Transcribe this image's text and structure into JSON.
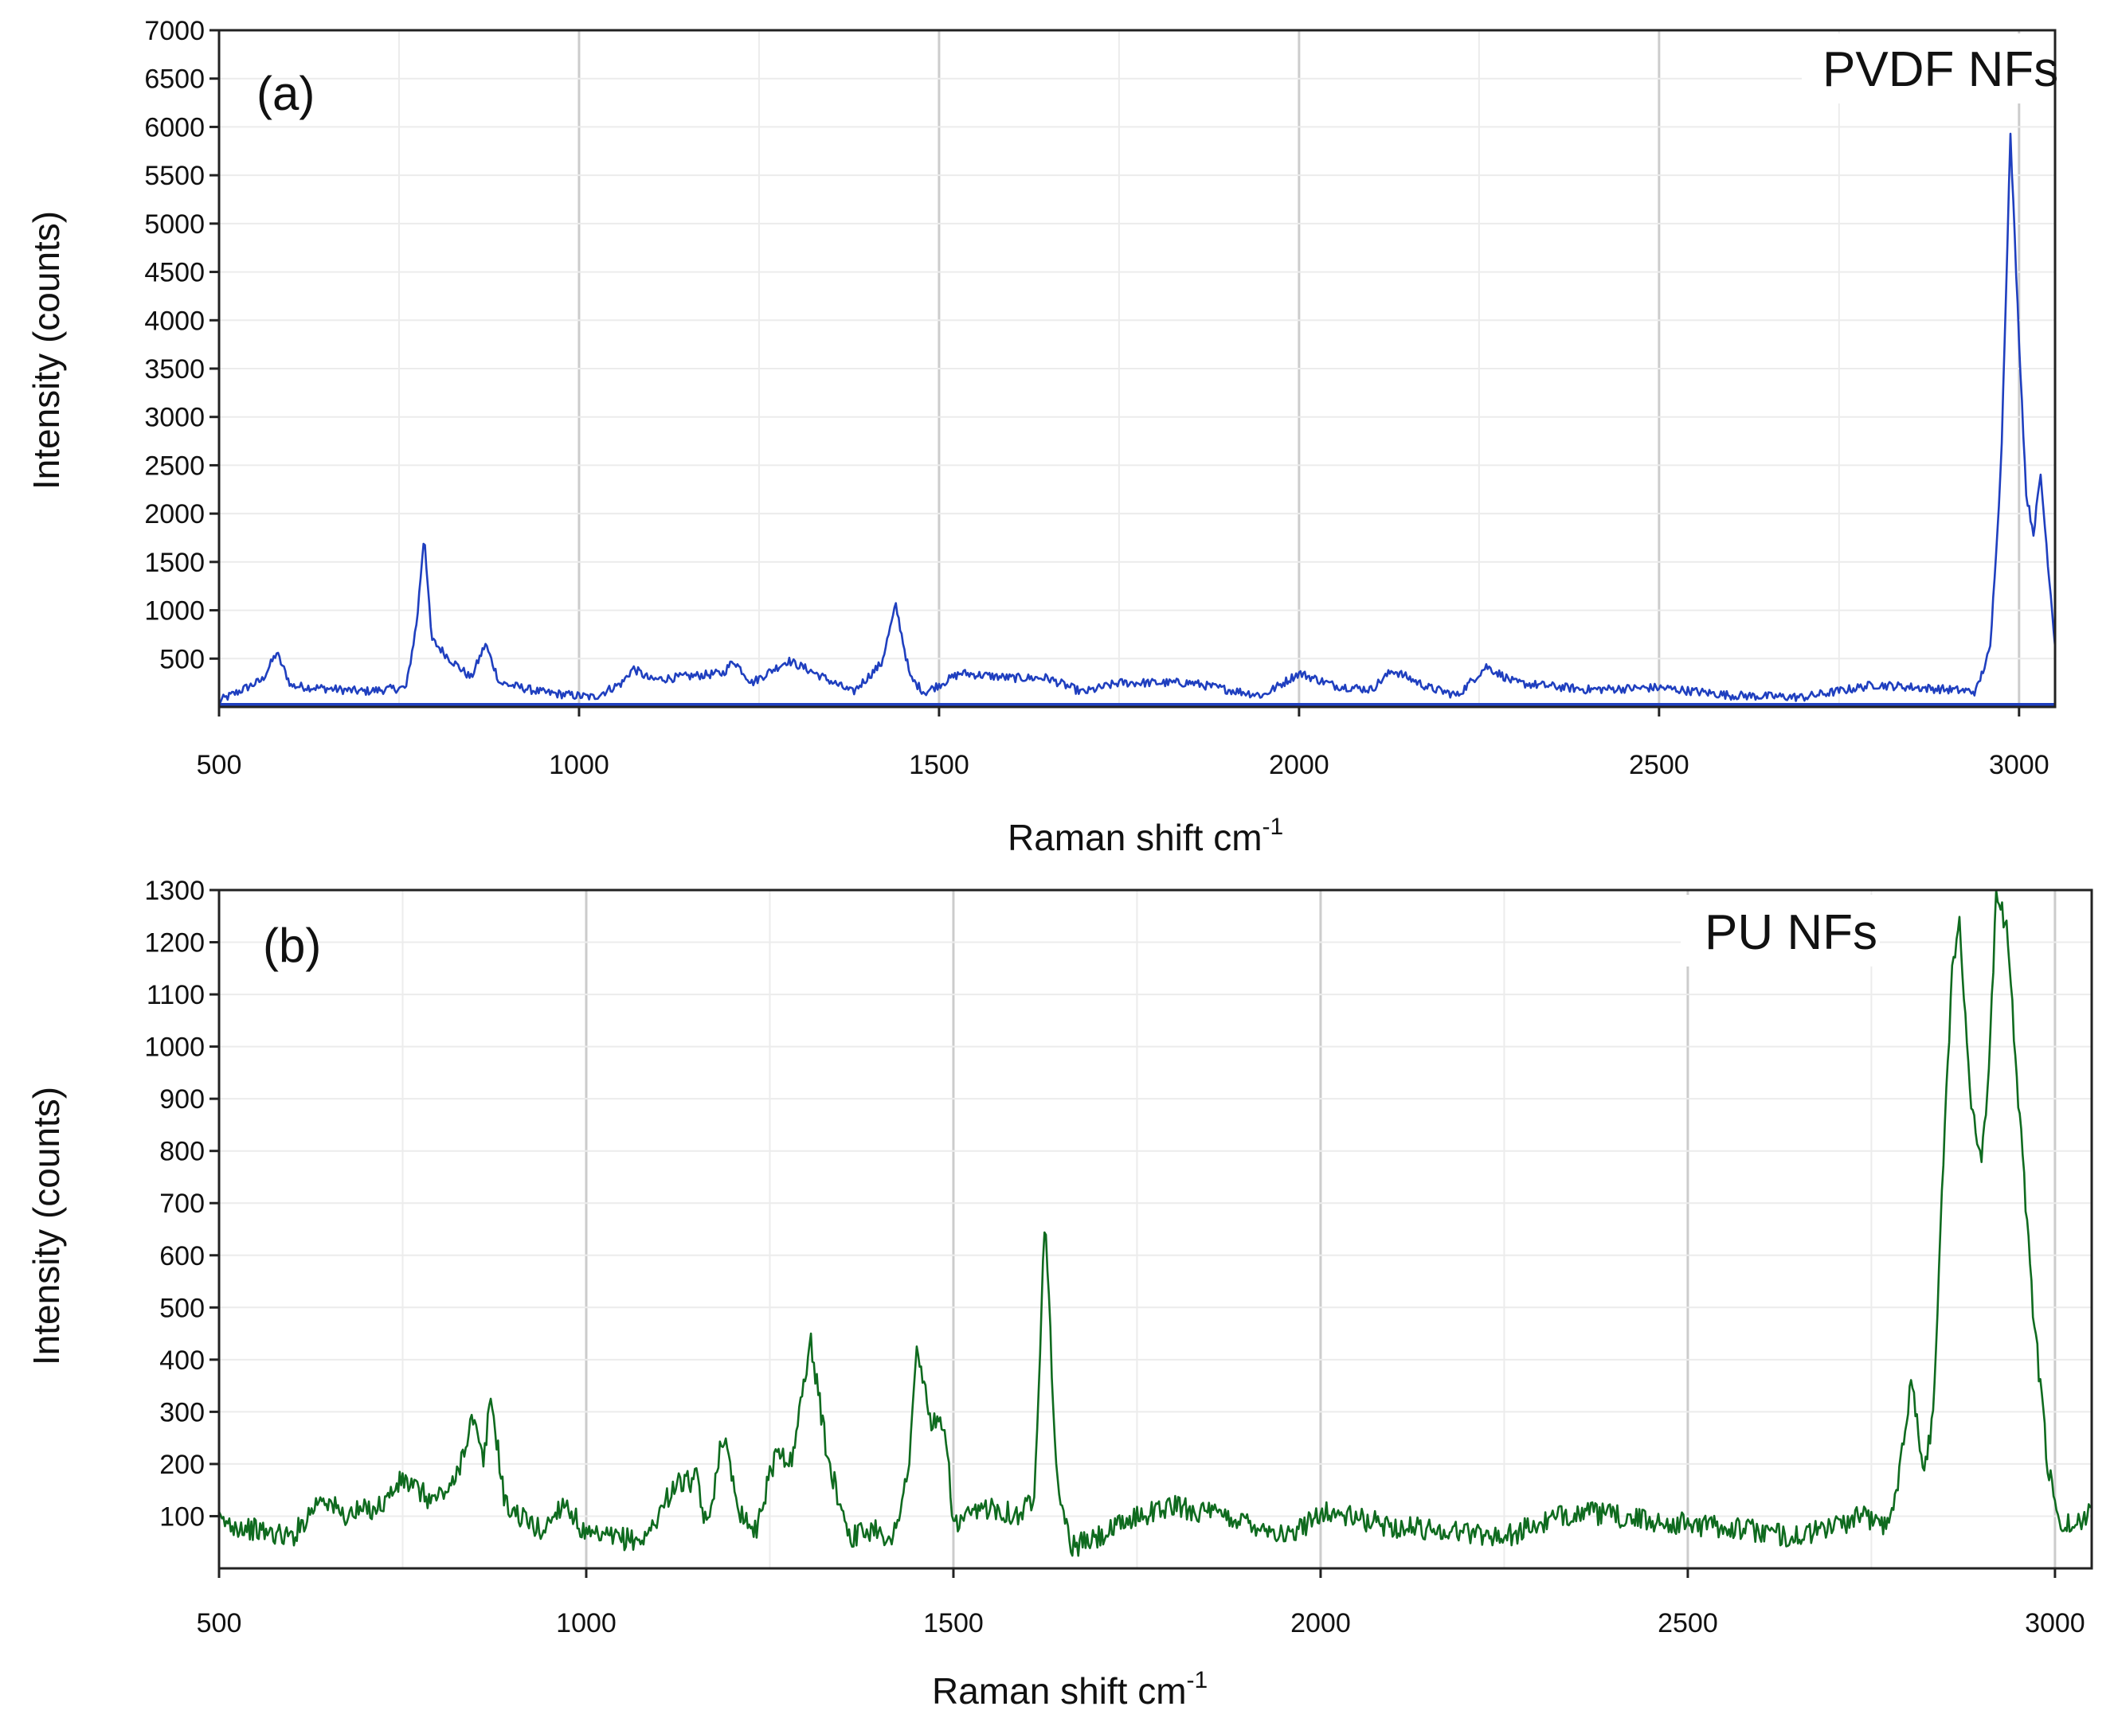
{
  "chart_data": [
    {
      "type": "line",
      "panel_label": "(a)",
      "legend": "PVDF NFs",
      "color": "#1f3fbf",
      "xlabel": "Raman shift cm",
      "xlabel_sup": "-1",
      "ylabel": "Intensity (counts)",
      "xlim": [
        500,
        3050
      ],
      "ylim": [
        0,
        7000
      ],
      "xticks": [
        500,
        1000,
        1500,
        2000,
        2500,
        3000
      ],
      "yticks": [
        500,
        1000,
        1500,
        2000,
        2500,
        3000,
        3500,
        4000,
        4500,
        5000,
        5500,
        6000,
        6500,
        7000
      ],
      "noise": 45,
      "baseline": [
        [
          500,
          60
        ],
        [
          560,
          280
        ],
        [
          580,
          560
        ],
        [
          600,
          220
        ],
        [
          700,
          160
        ],
        [
          760,
          200
        ],
        [
          775,
          900
        ],
        [
          785,
          1800
        ],
        [
          795,
          700
        ],
        [
          820,
          500
        ],
        [
          850,
          300
        ],
        [
          870,
          650
        ],
        [
          890,
          250
        ],
        [
          950,
          150
        ],
        [
          1020,
          100
        ],
        [
          1060,
          250
        ],
        [
          1075,
          400
        ],
        [
          1100,
          280
        ],
        [
          1200,
          350
        ],
        [
          1215,
          480
        ],
        [
          1240,
          250
        ],
        [
          1290,
          480
        ],
        [
          1320,
          380
        ],
        [
          1380,
          150
        ],
        [
          1420,
          450
        ],
        [
          1440,
          1050
        ],
        [
          1460,
          300
        ],
        [
          1480,
          150
        ],
        [
          1530,
          350
        ],
        [
          1600,
          300
        ],
        [
          1650,
          300
        ],
        [
          1700,
          150
        ],
        [
          1750,
          250
        ],
        [
          1850,
          250
        ],
        [
          1900,
          180
        ],
        [
          1950,
          120
        ],
        [
          2000,
          350
        ],
        [
          2050,
          220
        ],
        [
          2100,
          180
        ],
        [
          2130,
          380
        ],
        [
          2180,
          200
        ],
        [
          2220,
          120
        ],
        [
          2260,
          420
        ],
        [
          2300,
          250
        ],
        [
          2400,
          180
        ],
        [
          2500,
          200
        ],
        [
          2600,
          120
        ],
        [
          2700,
          100
        ],
        [
          2800,
          230
        ],
        [
          2900,
          180
        ],
        [
          2940,
          160
        ],
        [
          2960,
          600
        ],
        [
          2975,
          2500
        ],
        [
          2988,
          5900
        ],
        [
          3000,
          3800
        ],
        [
          3010,
          2200
        ],
        [
          3020,
          1800
        ],
        [
          3030,
          2400
        ],
        [
          3040,
          1500
        ],
        [
          3050,
          650
        ]
      ]
    },
    {
      "type": "line",
      "panel_label": "(b)",
      "legend": "PU NFs",
      "color": "#0f6b1f",
      "xlabel": "Raman shift cm",
      "xlabel_sup": "-1",
      "ylabel": "Intensity (counts)",
      "xlim": [
        500,
        3050
      ],
      "ylim": [
        0,
        1300
      ],
      "xticks": [
        500,
        1000,
        1500,
        2000,
        2500,
        3000
      ],
      "yticks": [
        100,
        200,
        300,
        400,
        500,
        600,
        700,
        800,
        900,
        1000,
        1100,
        1200,
        1300
      ],
      "noise": 22,
      "baseline": [
        [
          500,
          90
        ],
        [
          560,
          70
        ],
        [
          600,
          60
        ],
        [
          640,
          140
        ],
        [
          670,
          100
        ],
        [
          720,
          120
        ],
        [
          750,
          170
        ],
        [
          790,
          130
        ],
        [
          820,
          160
        ],
        [
          845,
          290
        ],
        [
          860,
          200
        ],
        [
          870,
          330
        ],
        [
          890,
          120
        ],
        [
          940,
          70
        ],
        [
          970,
          130
        ],
        [
          1000,
          60
        ],
        [
          1080,
          55
        ],
        [
          1120,
          160
        ],
        [
          1150,
          170
        ],
        [
          1165,
          70
        ],
        [
          1185,
          260
        ],
        [
          1210,
          110
        ],
        [
          1230,
          70
        ],
        [
          1260,
          230
        ],
        [
          1280,
          200
        ],
        [
          1305,
          440
        ],
        [
          1330,
          200
        ],
        [
          1360,
          60
        ],
        [
          1400,
          80
        ],
        [
          1415,
          40
        ],
        [
          1440,
          200
        ],
        [
          1450,
          420
        ],
        [
          1470,
          280
        ],
        [
          1490,
          260
        ],
        [
          1500,
          80
        ],
        [
          1550,
          120
        ],
        [
          1590,
          100
        ],
        [
          1610,
          140
        ],
        [
          1625,
          690
        ],
        [
          1640,
          180
        ],
        [
          1660,
          40
        ],
        [
          1700,
          60
        ],
        [
          1750,
          100
        ],
        [
          1800,
          120
        ],
        [
          1900,
          90
        ],
        [
          1960,
          60
        ],
        [
          2000,
          110
        ],
        [
          2100,
          80
        ],
        [
          2200,
          70
        ],
        [
          2250,
          60
        ],
        [
          2350,
          110
        ],
        [
          2450,
          90
        ],
        [
          2550,
          80
        ],
        [
          2650,
          60
        ],
        [
          2740,
          100
        ],
        [
          2775,
          80
        ],
        [
          2785,
          160
        ],
        [
          2805,
          370
        ],
        [
          2820,
          180
        ],
        [
          2835,
          300
        ],
        [
          2845,
          700
        ],
        [
          2860,
          1150
        ],
        [
          2870,
          1230
        ],
        [
          2885,
          900
        ],
        [
          2900,
          790
        ],
        [
          2910,
          950
        ],
        [
          2920,
          1290
        ],
        [
          2935,
          1230
        ],
        [
          2950,
          900
        ],
        [
          2970,
          500
        ],
        [
          2990,
          200
        ],
        [
          3005,
          80
        ],
        [
          3040,
          90
        ],
        [
          3050,
          140
        ]
      ]
    }
  ]
}
